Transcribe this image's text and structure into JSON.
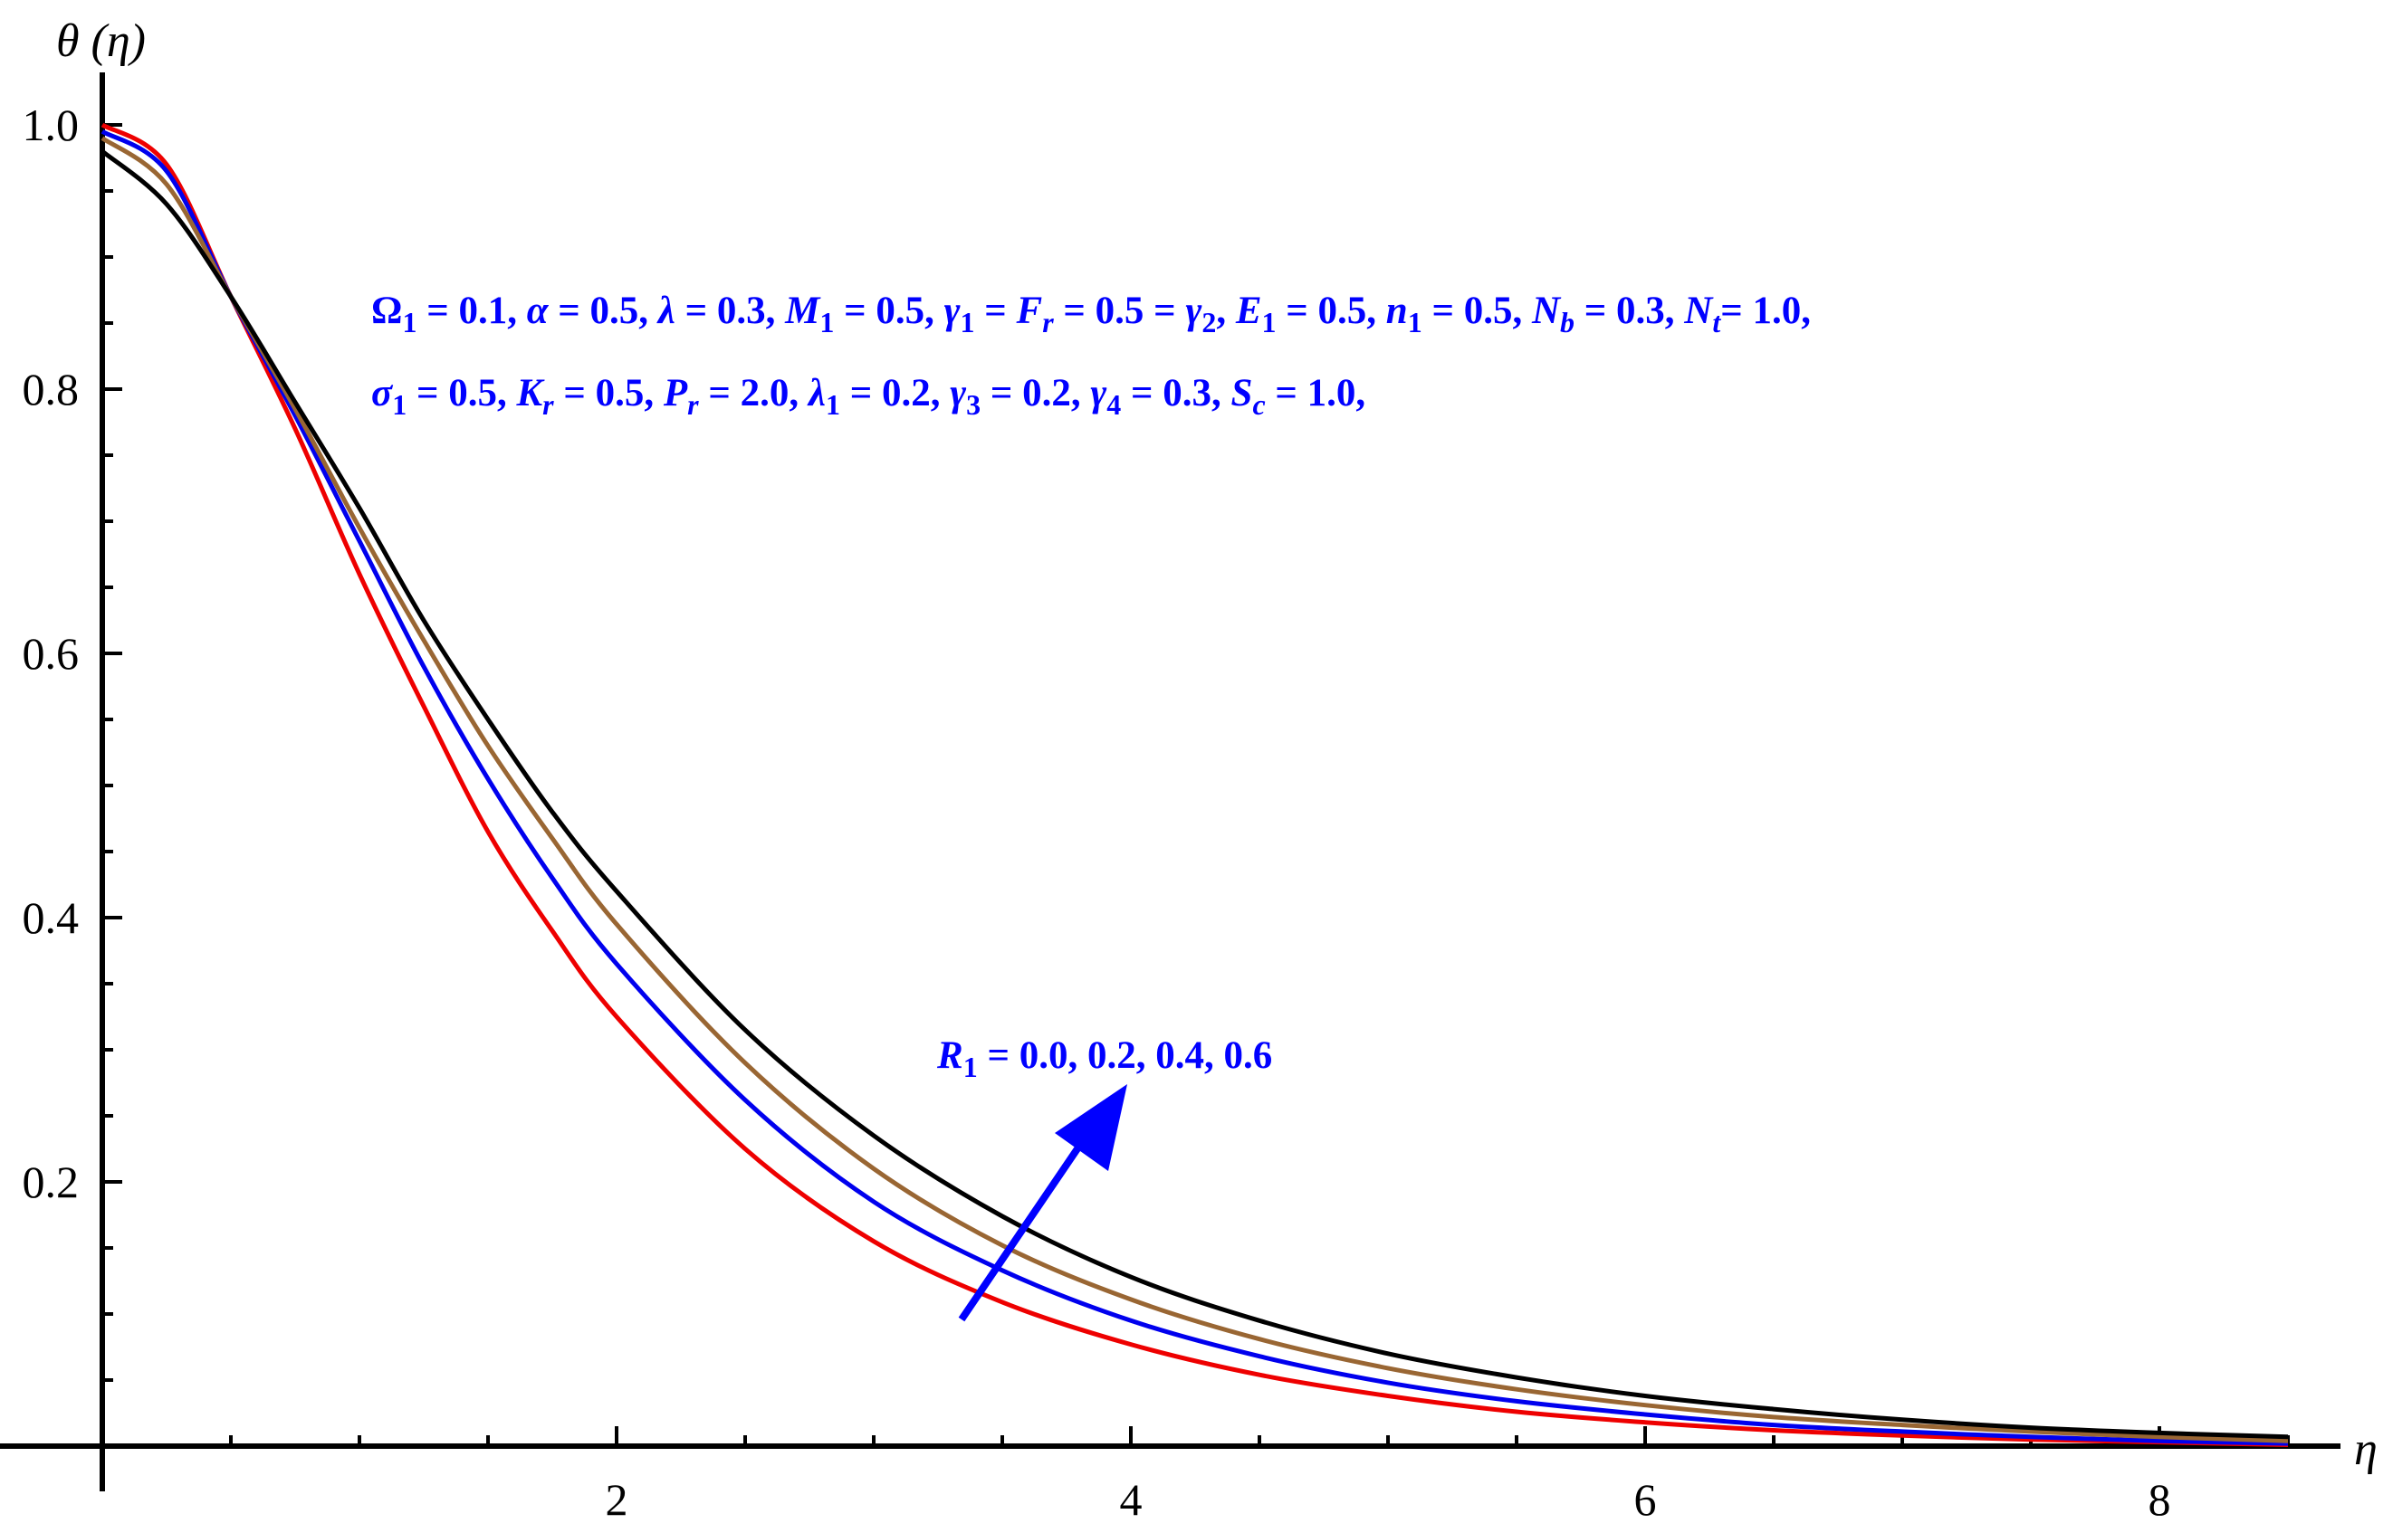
{
  "chart_data": {
    "type": "line",
    "title": "",
    "xlabel": "η",
    "ylabel": "θ (η)",
    "xlim": [
      0,
      8.5
    ],
    "ylim": [
      0,
      1.0
    ],
    "xticks": [
      2,
      4,
      6,
      8
    ],
    "xtick_labels": [
      "2",
      "4",
      "6",
      "8"
    ],
    "yticks": [
      0.2,
      0.4,
      0.6,
      0.8,
      1.0
    ],
    "ytick_labels": [
      "0.2",
      "0.4",
      "0.6",
      "0.8",
      "1.0"
    ],
    "grid": false,
    "x": [
      0,
      0.25,
      0.5,
      0.75,
      1,
      1.25,
      1.5,
      1.75,
      2,
      2.5,
      3,
      3.5,
      4,
      4.5,
      5,
      5.5,
      6,
      6.5,
      7,
      7.5,
      8,
      8.5
    ],
    "series": [
      {
        "color": "#ee0000",
        "values": [
          1.0,
          0.97,
          0.87,
          0.77,
          0.66,
          0.56,
          0.465,
          0.39,
          0.325,
          0.225,
          0.155,
          0.109,
          0.077,
          0.054,
          0.038,
          0.026,
          0.018,
          0.012,
          0.008,
          0.005,
          0.003,
          0.001
        ]
      },
      {
        "color": "#0000ee",
        "values": [
          0.995,
          0.965,
          0.87,
          0.78,
          0.685,
          0.59,
          0.505,
          0.43,
          0.365,
          0.262,
          0.185,
          0.133,
          0.095,
          0.068,
          0.048,
          0.034,
          0.024,
          0.016,
          0.011,
          0.007,
          0.004,
          0.002
        ]
      },
      {
        "color": "#996633",
        "values": [
          0.99,
          0.955,
          0.87,
          0.785,
          0.695,
          0.61,
          0.53,
          0.46,
          0.395,
          0.29,
          0.21,
          0.152,
          0.111,
          0.081,
          0.059,
          0.043,
          0.031,
          0.022,
          0.016,
          0.011,
          0.007,
          0.004
        ]
      },
      {
        "color": "#000000",
        "values": [
          0.98,
          0.94,
          0.87,
          0.79,
          0.71,
          0.625,
          0.55,
          0.48,
          0.42,
          0.315,
          0.235,
          0.174,
          0.128,
          0.095,
          0.07,
          0.052,
          0.038,
          0.028,
          0.02,
          0.014,
          0.01,
          0.007
        ]
      }
    ],
    "annotations": {
      "params_line1": [
        {
          "t": "Ω",
          "it": false
        },
        {
          "t": "1",
          "sub": true
        },
        {
          "t": " =  0.1, ",
          "it": false
        },
        {
          "t": "α",
          "it": true
        },
        {
          "t": " = 0.5, ",
          "it": false
        },
        {
          "t": "λ",
          "it": true
        },
        {
          "t": " = 0.3, ",
          "it": false
        },
        {
          "t": "M",
          "it": true
        },
        {
          "t": "1",
          "sub": true
        },
        {
          "t": " = 0.5, ",
          "it": false
        },
        {
          "t": "γ",
          "it": true
        },
        {
          "t": "1",
          "sub": true
        },
        {
          "t": " = ",
          "it": false
        },
        {
          "t": "F",
          "it": true
        },
        {
          "t": "r",
          "sub": true,
          "it": true
        },
        {
          "t": " = 0.5 = ",
          "it": false
        },
        {
          "t": "γ",
          "it": true
        },
        {
          "t": "2",
          "sub": true
        },
        {
          "t": ", ",
          "it": false
        },
        {
          "t": "E",
          "it": true
        },
        {
          "t": "1",
          "sub": true
        },
        {
          "t": " = 0.5, ",
          "it": false
        },
        {
          "t": "n",
          "it": true
        },
        {
          "t": "1",
          "sub": true
        },
        {
          "t": " = 0.5, ",
          "it": false
        },
        {
          "t": "N",
          "it": true
        },
        {
          "t": "b",
          "sub": true,
          "it": true
        },
        {
          "t": " = 0.3, ",
          "it": false
        },
        {
          "t": "N",
          "it": true
        },
        {
          "t": "t",
          "sub": true,
          "it": true
        },
        {
          "t": "= 1.0,",
          "it": false
        }
      ],
      "params_line2": [
        {
          "t": "σ",
          "it": true
        },
        {
          "t": "1",
          "sub": true
        },
        {
          "t": " = 0.5,  ",
          "it": false
        },
        {
          "t": "K",
          "it": true
        },
        {
          "t": "r",
          "sub": true,
          "it": true
        },
        {
          "t": " = 0.5, ",
          "it": false
        },
        {
          "t": "P",
          "it": true
        },
        {
          "t": "r",
          "sub": true,
          "it": true
        },
        {
          "t": " = 2.0, ",
          "it": false
        },
        {
          "t": "λ",
          "it": true
        },
        {
          "t": "1",
          "sub": true
        },
        {
          "t": " = 0.2, ",
          "it": false
        },
        {
          "t": "γ",
          "it": true
        },
        {
          "t": "3",
          "sub": true
        },
        {
          "t": " = 0.2, ",
          "it": false
        },
        {
          "t": "γ",
          "it": true
        },
        {
          "t": "4",
          "sub": true
        },
        {
          "t": " = 0.3, ",
          "it": false
        },
        {
          "t": "S",
          "it": true
        },
        {
          "t": "c",
          "sub": true,
          "it": true
        },
        {
          "t": " = 1.0,",
          "it": false
        }
      ],
      "r_label": [
        {
          "t": "R",
          "it": true
        },
        {
          "t": "1",
          "sub": true
        },
        {
          "t": " = 0.0, 0.2, 0.4, 0.6",
          "it": false
        }
      ],
      "arrow_color": "#0000ff"
    }
  }
}
